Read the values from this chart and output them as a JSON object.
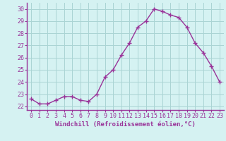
{
  "x": [
    0,
    1,
    2,
    3,
    4,
    5,
    6,
    7,
    8,
    9,
    10,
    11,
    12,
    13,
    14,
    15,
    16,
    17,
    18,
    19,
    20,
    21,
    22,
    23
  ],
  "y": [
    22.6,
    22.2,
    22.2,
    22.5,
    22.8,
    22.8,
    22.5,
    22.4,
    23.0,
    24.4,
    25.0,
    26.2,
    27.2,
    28.5,
    29.0,
    30.0,
    29.8,
    29.5,
    29.3,
    28.5,
    27.2,
    26.4,
    25.3,
    24.0
  ],
  "line_color": "#993399",
  "marker": "+",
  "marker_size": 4,
  "linewidth": 1.0,
  "xlabel": "Windchill (Refroidissement éolien,°C)",
  "xlabel_fontsize": 6.5,
  "ylabel_ticks": [
    22,
    23,
    24,
    25,
    26,
    27,
    28,
    29,
    30
  ],
  "xtick_labels": [
    "0",
    "1",
    "2",
    "3",
    "4",
    "5",
    "6",
    "7",
    "8",
    "9",
    "10",
    "11",
    "12",
    "13",
    "14",
    "15",
    "16",
    "17",
    "18",
    "19",
    "20",
    "21",
    "22",
    "23"
  ],
  "ylim": [
    21.7,
    30.5
  ],
  "xlim": [
    -0.5,
    23.5
  ],
  "bg_color": "#d5f2f2",
  "grid_color": "#aad4d4",
  "tick_color": "#993399",
  "tick_fontsize": 6,
  "spine_color": "#993399"
}
